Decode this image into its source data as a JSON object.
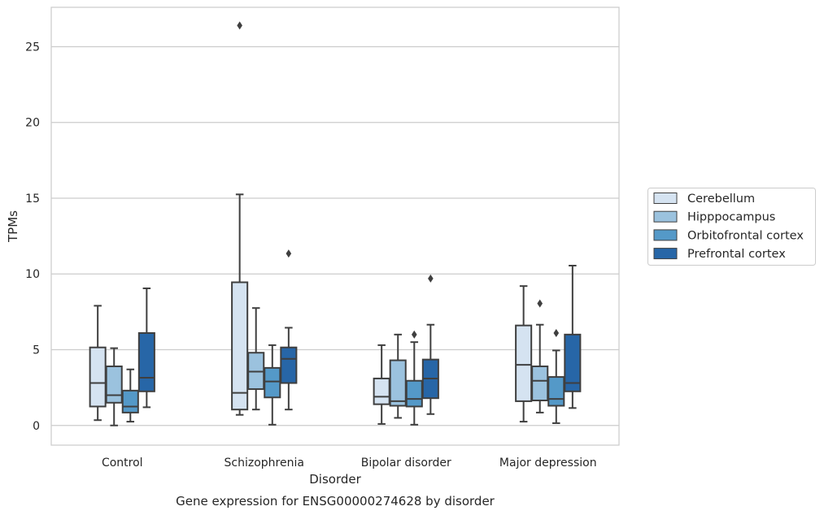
{
  "caption": "Gene expression for ENSG00000274628 by disorder",
  "chart_data": {
    "type": "box",
    "xlabel": "Disorder",
    "ylabel": "TPMs",
    "ylim": [
      -1.3,
      27.6
    ],
    "yticks": [
      0,
      5,
      10,
      15,
      20,
      25
    ],
    "grid": "horizontal",
    "legend_position": "right",
    "categories": [
      "Control",
      "Schizophrenia",
      "Bipolar disorder",
      "Major depression"
    ],
    "series": [
      {
        "name": "Cerebellum",
        "color": "#d5e3f1",
        "boxes": [
          {
            "whislo": 0.35,
            "q1": 1.25,
            "med": 2.8,
            "q3": 5.15,
            "whishi": 7.9,
            "fliers": []
          },
          {
            "whislo": 0.7,
            "q1": 1.05,
            "med": 2.15,
            "q3": 9.45,
            "whishi": 15.25,
            "fliers": [
              26.4
            ]
          },
          {
            "whislo": 0.1,
            "q1": 1.4,
            "med": 1.9,
            "q3": 3.1,
            "whishi": 5.3,
            "fliers": []
          },
          {
            "whislo": 0.25,
            "q1": 1.6,
            "med": 4.0,
            "q3": 6.6,
            "whishi": 9.2,
            "fliers": []
          }
        ]
      },
      {
        "name": "Hipppocampus",
        "color": "#9bc2de",
        "boxes": [
          {
            "whislo": 0.0,
            "q1": 1.5,
            "med": 2.0,
            "q3": 3.9,
            "whishi": 5.1,
            "fliers": []
          },
          {
            "whislo": 1.05,
            "q1": 2.4,
            "med": 3.55,
            "q3": 4.8,
            "whishi": 7.75,
            "fliers": []
          },
          {
            "whislo": 0.5,
            "q1": 1.3,
            "med": 1.6,
            "q3": 4.3,
            "whishi": 6.0,
            "fliers": []
          },
          {
            "whislo": 0.85,
            "q1": 1.65,
            "med": 2.95,
            "q3": 3.9,
            "whishi": 6.65,
            "fliers": [
              8.05
            ]
          }
        ]
      },
      {
        "name": "Orbitofrontal cortex",
        "color": "#5499c8",
        "boxes": [
          {
            "whislo": 0.25,
            "q1": 0.85,
            "med": 1.25,
            "q3": 2.3,
            "whishi": 3.7,
            "fliers": []
          },
          {
            "whislo": 0.05,
            "q1": 1.85,
            "med": 2.9,
            "q3": 3.8,
            "whishi": 5.3,
            "fliers": []
          },
          {
            "whislo": 0.05,
            "q1": 1.25,
            "med": 1.75,
            "q3": 2.95,
            "whishi": 5.5,
            "fliers": [
              6.0
            ]
          },
          {
            "whislo": 0.15,
            "q1": 1.3,
            "med": 1.75,
            "q3": 3.2,
            "whishi": 4.95,
            "fliers": [
              6.1
            ]
          }
        ]
      },
      {
        "name": "Prefrontal cortex",
        "color": "#2766a7",
        "boxes": [
          {
            "whislo": 1.2,
            "q1": 2.25,
            "med": 3.15,
            "q3": 6.1,
            "whishi": 9.05,
            "fliers": []
          },
          {
            "whislo": 1.05,
            "q1": 2.8,
            "med": 4.4,
            "q3": 5.15,
            "whishi": 6.45,
            "fliers": [
              11.35
            ]
          },
          {
            "whislo": 0.75,
            "q1": 1.8,
            "med": 3.1,
            "q3": 4.35,
            "whishi": 6.65,
            "fliers": [
              9.7
            ]
          },
          {
            "whislo": 1.15,
            "q1": 2.25,
            "med": 2.8,
            "q3": 6.0,
            "whishi": 10.55,
            "fliers": []
          }
        ]
      }
    ]
  }
}
